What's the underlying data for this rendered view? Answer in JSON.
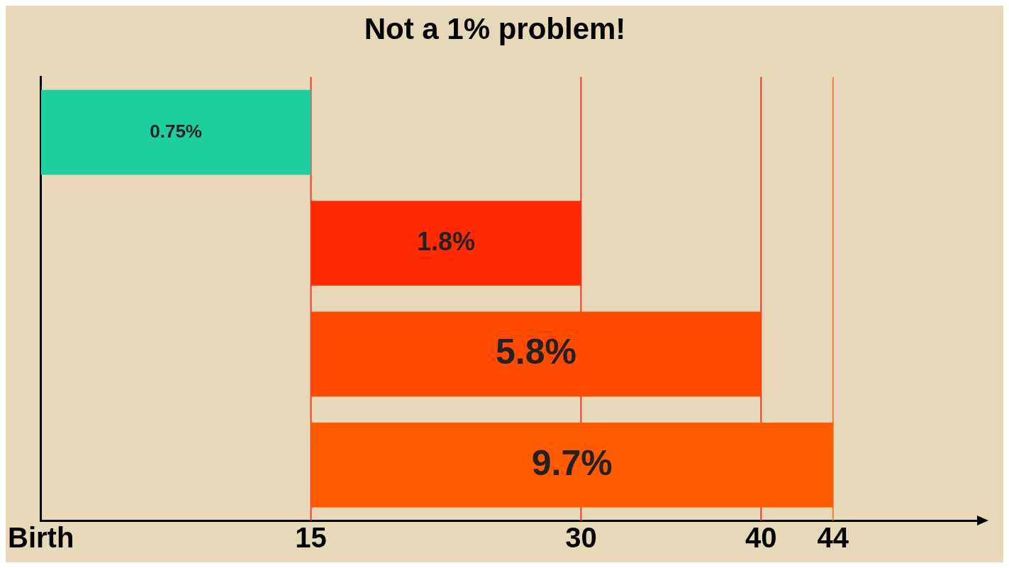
{
  "chart_data": {
    "type": "bar",
    "title": "Not a 1% problem!",
    "orientation": "horizontal",
    "categories": [
      null,
      null,
      null,
      null
    ],
    "values": [
      15,
      15,
      25,
      29
    ],
    "base": [
      0,
      15,
      15,
      15
    ],
    "colors": [
      "#1dcfa0",
      "#ff2a00",
      "#ff4a00",
      "#ff5a00"
    ],
    "annotations": [
      "0.75%",
      "1.8%",
      "5.8%",
      "9.7%"
    ],
    "xlim": [
      0,
      52
    ],
    "xticks": [
      {
        "value": 0,
        "label": "Birth"
      },
      15,
      30,
      40,
      44
    ],
    "ref_lines": [
      {
        "axis": "x",
        "value": 15,
        "color": "#e8402a"
      },
      {
        "axis": "x",
        "value": 30,
        "color": "#e8402a"
      },
      {
        "axis": "x",
        "value": 40,
        "color": "#e8402a"
      },
      {
        "axis": "x",
        "value": 44,
        "color": "#f08040"
      }
    ],
    "tick_labels": "x",
    "grid": false,
    "legend": false
  }
}
